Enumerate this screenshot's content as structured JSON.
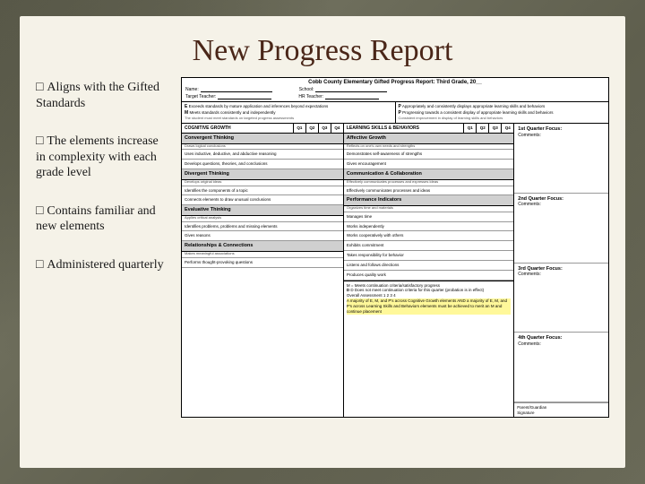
{
  "title": "New Progress Report",
  "bullets": [
    "Aligns with the Gifted Standards",
    "The elements increase in complexity with each grade level",
    "Contains familiar and new elements",
    "Administered quarterly"
  ],
  "form": {
    "header": "Cobb County Elementary Gifted Progress Report:  Third Grade, 20__",
    "fields": {
      "name": "Name:",
      "school": "School:",
      "target": "Target Teacher:",
      "hr": "HR Teacher:"
    },
    "legend": {
      "E": {
        "code": "E",
        "label": "Exceeds standards by mature application and inferences beyond expectations"
      },
      "M": {
        "code": "M",
        "label": "Meets standards consistently and independently"
      },
      "P": {
        "code": "P",
        "label": "Appropriately and consistently displays appropriate learning skills and behaviors"
      },
      "PR": {
        "code": "P",
        "label": "Progressing towards a consistent display of appropriate learning skills and behaviors"
      }
    },
    "quarters": [
      "Q1",
      "Q2",
      "Q3",
      "Q4"
    ],
    "cognitive": {
      "title": "COGNITIVE GROWTH",
      "sections": [
        {
          "name": "Convergent Thinking",
          "desc": "Draws logical conclusions",
          "items": [
            "Uses inductive, deductive, and abductive reasoning",
            "Develops questions, theories, and conclusions"
          ]
        },
        {
          "name": "Divergent Thinking",
          "desc": "Develops original ideas",
          "items": [
            "Identifies the components of a topic",
            "Connects elements to draw unusual conclusions"
          ]
        },
        {
          "name": "Evaluative Thinking",
          "desc": "Applies critical analysis",
          "items": [
            "Identifies problems, problems and missing elements",
            "Gives reasons"
          ]
        },
        {
          "name": "Relationships & Connections",
          "desc": "Makes meaningful associations",
          "items": [
            "Performs thought-provoking questions"
          ]
        }
      ]
    },
    "learning": {
      "title": "LEARNING SKILLS & BEHAVIORS",
      "sections": [
        {
          "name": "Affective Growth",
          "desc": "Reflects on one's own needs and strengths",
          "items": [
            "Demonstrates self-awareness of strengths",
            "Gives encouragement"
          ]
        },
        {
          "name": "Communication & Collaboration",
          "desc": "Effectively communicates processes and expresses ideas",
          "items": [
            "Effectively communicates processes and ideas"
          ]
        },
        {
          "name": "Performance Indicators",
          "desc": "Organizes time and materials",
          "items": [
            "Manages time",
            "Works independently",
            "Works cooperatively with others",
            "Exhibits commitment",
            "Takes responsibility for behavior",
            "Listens and follows directions",
            "Produces quality work"
          ]
        }
      ]
    },
    "quarterFocus": [
      {
        "label": "1st Quarter Focus:",
        "sub": "Comments:"
      },
      {
        "label": "2nd Quarter Focus:",
        "sub": "Comments:"
      },
      {
        "label": "3rd Quarter Focus:",
        "sub": "Comments:"
      },
      {
        "label": "4th Quarter Focus:",
        "sub": "Comments:"
      }
    ],
    "bottom": {
      "line1": "M = Meets continuation criteria/satisfactory progress",
      "line2": "D   Does not meet continuation criteria for this quarter (probation is in effect)",
      "line3": "Overall Assessment   1   2   3   4",
      "line4": "A majority of E, M, and P's across Cognitive Growth elements AND a majority of E, M, and P's across Learning Skills and Behaviors elements must be achieved to merit an M and continue placement"
    }
  },
  "colors": {
    "background": "#6b6b5a",
    "paper": "#f5f2e8",
    "title": "#4a2618",
    "sectionBg": "#d0d0d0",
    "highlight": "#fff89a"
  }
}
